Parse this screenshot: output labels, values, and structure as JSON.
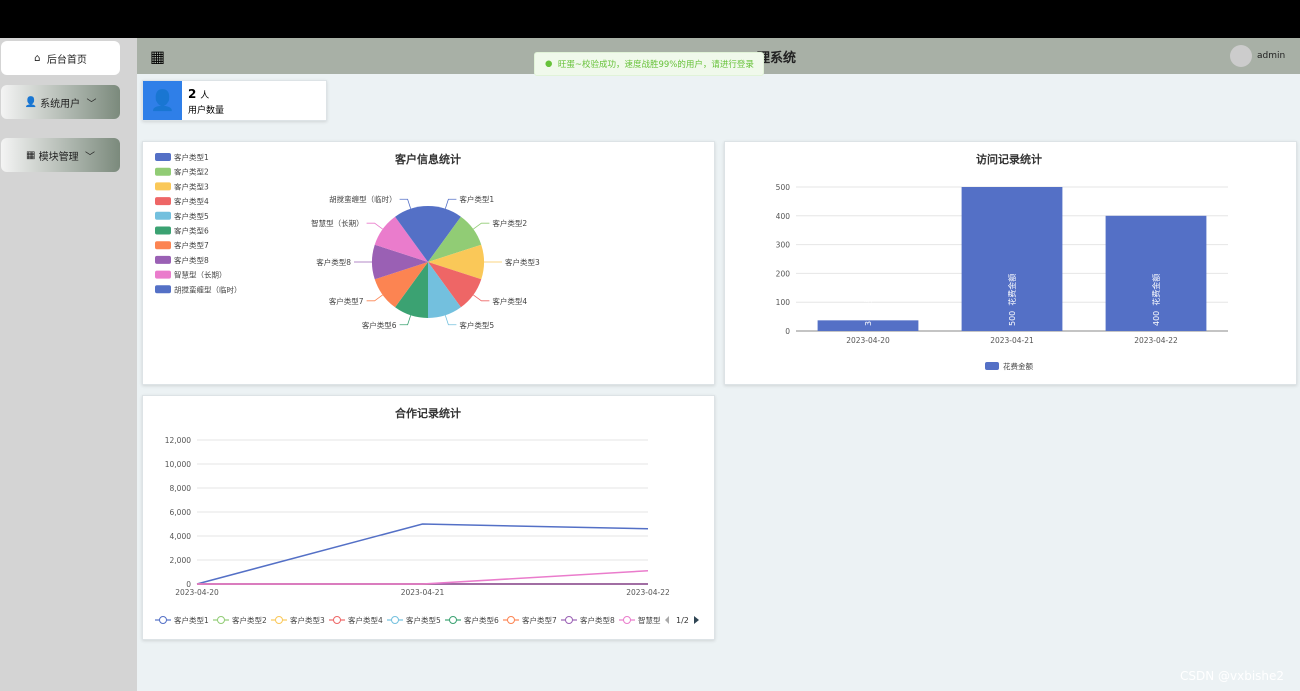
{
  "sidebar": {
    "items": [
      "后台首页",
      "系统用户",
      "模块管理"
    ]
  },
  "header": {
    "title": "理系统",
    "toast": "旺蛋~校验成功，速度战胜99%的用户，请进行登录",
    "user": "admin"
  },
  "stat": {
    "value": 2,
    "unit": "人",
    "label": "用户数量"
  },
  "chart_data": [
    {
      "type": "pie",
      "title": "客户信息统计",
      "categories": [
        "客户类型1",
        "客户类型2",
        "客户类型3",
        "客户类型4",
        "客户类型5",
        "客户类型6",
        "客户类型7",
        "客户类型8",
        "智慧型（长期）",
        "胡搅蛮缠型（临时）"
      ],
      "values": [
        1,
        1,
        1,
        1,
        1,
        1,
        1,
        1,
        1,
        1
      ],
      "colors": [
        "#5470c6",
        "#91cc75",
        "#fac858",
        "#ee6666",
        "#73c0de",
        "#3ba272",
        "#fc8452",
        "#9a60b4",
        "#ea7ccc",
        "#5470c6"
      ],
      "legend": "top-left"
    },
    {
      "type": "bar",
      "title": "访问记录统计",
      "categories": [
        "2023-04-20",
        "2023-04-21",
        "2023-04-22"
      ],
      "series": [
        {
          "name": "花费金额",
          "color": "#5470c6",
          "values": [
            37,
            500,
            400
          ]
        }
      ],
      "ylim": [
        0,
        500
      ],
      "yticks": [
        0,
        100,
        200,
        300,
        400,
        500
      ],
      "grid": true,
      "legend": "bottom"
    },
    {
      "type": "line",
      "title": "合作记录统计",
      "categories": [
        "2023-04-20",
        "2023-04-21",
        "2023-04-22"
      ],
      "series": [
        {
          "name": "客户类型1",
          "color": "#5470c6",
          "values": [
            0,
            5000,
            4600
          ]
        },
        {
          "name": "客户类型2",
          "color": "#91cc75",
          "values": [
            0,
            0,
            0
          ]
        },
        {
          "name": "客户类型3",
          "color": "#fac858",
          "values": [
            0,
            0,
            0
          ]
        },
        {
          "name": "客户类型4",
          "color": "#ee6666",
          "values": [
            0,
            0,
            0
          ]
        },
        {
          "name": "客户类型5",
          "color": "#73c0de",
          "values": [
            0,
            0,
            0
          ]
        },
        {
          "name": "客户类型6",
          "color": "#3ba272",
          "values": [
            0,
            0,
            0
          ]
        },
        {
          "name": "客户类型7",
          "color": "#fc8452",
          "values": [
            0,
            0,
            0
          ]
        },
        {
          "name": "客户类型8",
          "color": "#9a60b4",
          "values": [
            0,
            0,
            0
          ]
        },
        {
          "name": "智慧型",
          "color": "#ea7ccc",
          "values": [
            0,
            0,
            1100
          ]
        }
      ],
      "ylim": [
        0,
        12000
      ],
      "yticks": [
        0,
        {
          "value": 2000,
          "label": "2,000"
        },
        {
          "value": 4000,
          "label": "4,000"
        },
        {
          "value": 6000,
          "label": "6,000"
        },
        {
          "value": 8000,
          "label": "8,000"
        },
        {
          "value": 10000,
          "label": "10,000"
        },
        {
          "value": 12000,
          "label": "12,000"
        }
      ],
      "grid": true,
      "legend": "bottom",
      "legend_page": "1/2"
    }
  ],
  "watermark": "CSDN @vxbishe2"
}
